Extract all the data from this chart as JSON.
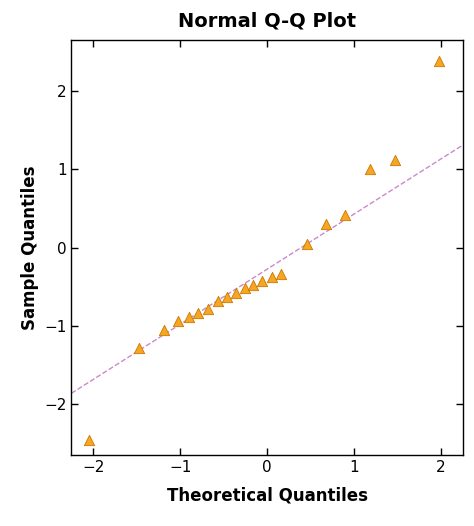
{
  "title": "Normal Q-Q Plot",
  "xlabel": "Theoretical Quantiles",
  "ylabel": "Sample Quantiles",
  "xlim": [
    -2.25,
    2.25
  ],
  "ylim": [
    -2.65,
    2.65
  ],
  "xticks": [
    -2,
    -1,
    0,
    1,
    2
  ],
  "yticks": [
    -2,
    -1,
    0,
    1,
    2
  ],
  "marker_color": "#F5A623",
  "marker_edge_color": "#CC7700",
  "line_color": "#CC88CC",
  "title_fontsize": 14,
  "label_fontsize": 12,
  "tick_fontsize": 11,
  "background_color": "#ffffff",
  "points_x": [
    -2.05,
    -1.47,
    -1.18,
    -1.03,
    -0.9,
    -0.79,
    -0.68,
    -0.57,
    -0.46,
    -0.36,
    -0.26,
    -0.16,
    -0.06,
    0.06,
    0.16,
    0.46,
    0.68,
    0.9,
    1.18,
    1.47,
    1.97
  ],
  "points_y": [
    -2.45,
    -1.28,
    -1.05,
    -0.93,
    -0.88,
    -0.83,
    -0.78,
    -0.68,
    -0.63,
    -0.58,
    -0.52,
    -0.48,
    -0.42,
    -0.37,
    -0.33,
    0.05,
    0.3,
    0.42,
    1.0,
    1.12,
    2.38
  ],
  "line_x0": -2.25,
  "line_x1": 2.25,
  "line_slope": 0.82,
  "line_intercept": -0.28,
  "figwidth": 4.74,
  "figheight": 5.26,
  "dpi": 100
}
